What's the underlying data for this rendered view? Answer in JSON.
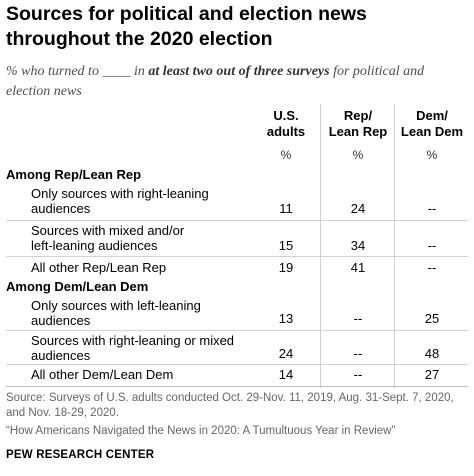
{
  "chart_data": {
    "type": "table",
    "title": "Sources for political and election news throughout the 2020 election",
    "subtitle": {
      "before": "% who turned to ____ in ",
      "emphasis": "at least two out of three surveys",
      "after": " for political and election news"
    },
    "columns": [
      {
        "label_line1": "U.S.",
        "label_line2": "adults",
        "unit": "%"
      },
      {
        "label_line1": "Rep/",
        "label_line2": "Lean Rep",
        "unit": "%"
      },
      {
        "label_line1": "Dem/",
        "label_line2": "Lean Dem",
        "unit": "%"
      }
    ],
    "groups": [
      {
        "label": "Among Rep/Lean Rep",
        "rows": [
          {
            "label_line1": "Only sources with right-leaning",
            "label_line2": "audiences",
            "values": [
              "11",
              "24",
              "--"
            ]
          },
          {
            "label_line1": "Sources with mixed and/or",
            "label_line2": "left-leaning audiences",
            "values": [
              "15",
              "34",
              "--"
            ]
          },
          {
            "label_line1": "All other Rep/Lean Rep",
            "label_line2": "",
            "values": [
              "19",
              "41",
              "--"
            ]
          }
        ]
      },
      {
        "label": "Among Dem/Lean Dem",
        "rows": [
          {
            "label_line1": "Only sources with left-leaning",
            "label_line2": "audiences",
            "values": [
              "13",
              "--",
              "25"
            ]
          },
          {
            "label_line1": "Sources with right-leaning or mixed",
            "label_line2": "audiences",
            "values": [
              "24",
              "--",
              "48"
            ]
          },
          {
            "label_line1": "All other Dem/Lean Dem",
            "label_line2": "",
            "values": [
              "14",
              "--",
              "27"
            ]
          }
        ]
      }
    ]
  },
  "footer": {
    "source": "Source: Surveys of U.S. adults conducted Oct. 29-Nov. 11, 2019, Aug. 31-Sept. 7, 2020, and Nov. 18-29, 2020.",
    "note": "“How Americans Navigated the News in 2020: A Tumultuous Year in Review”",
    "brand": "PEW RESEARCH CENTER"
  }
}
